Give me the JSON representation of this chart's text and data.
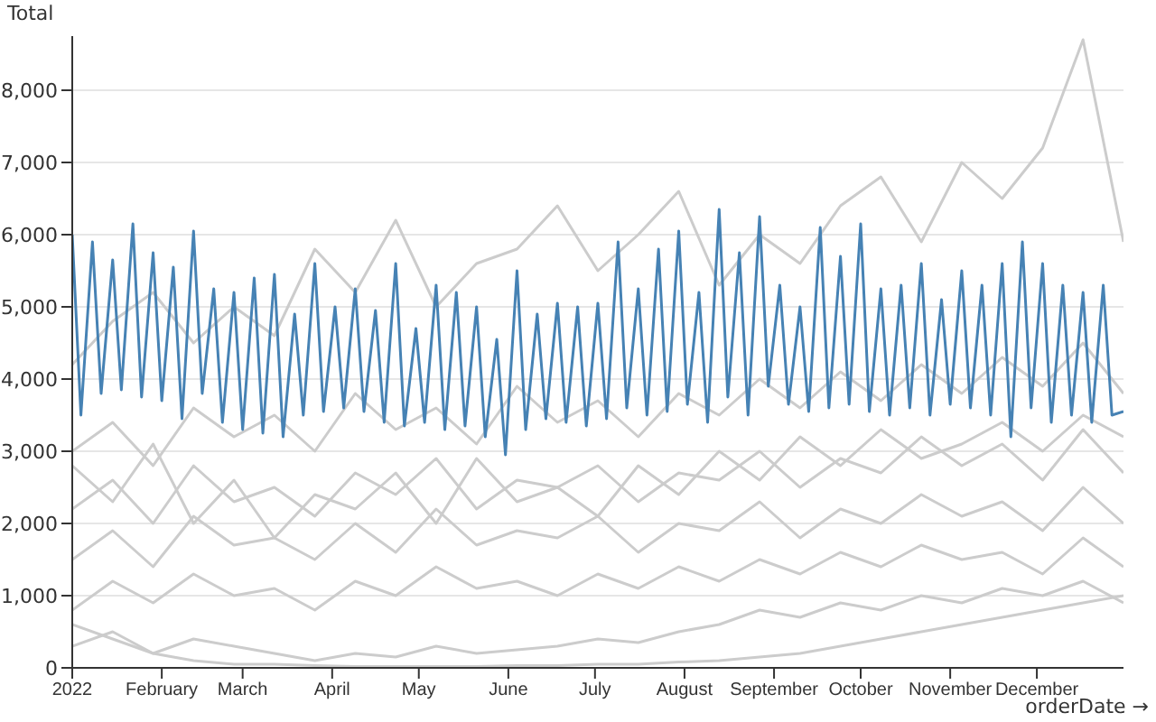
{
  "chart_data": {
    "type": "line",
    "ylabel": "Total",
    "xlabel": "orderDate →",
    "grid": "y",
    "legend": false,
    "marker": "none",
    "line_style": "solid",
    "xlim": [
      "2022-01-01",
      "2022-12-31"
    ],
    "xticks": [
      {
        "value": "2022-01-01",
        "label": "2022"
      },
      {
        "value": "2022-02-01",
        "label": "February"
      },
      {
        "value": "2022-03-01",
        "label": "March"
      },
      {
        "value": "2022-04-01",
        "label": "April"
      },
      {
        "value": "2022-05-01",
        "label": "May"
      },
      {
        "value": "2022-06-01",
        "label": "June"
      },
      {
        "value": "2022-07-01",
        "label": "July"
      },
      {
        "value": "2022-08-01",
        "label": "August"
      },
      {
        "value": "2022-09-01",
        "label": "September"
      },
      {
        "value": "2022-10-01",
        "label": "October"
      },
      {
        "value": "2022-11-01",
        "label": "November"
      },
      {
        "value": "2022-12-01",
        "label": "December"
      }
    ],
    "ylim": [
      0,
      8750
    ],
    "yticks": [
      0,
      {
        "value": 1000,
        "label": "1,000"
      },
      {
        "value": 2000,
        "label": "2,000"
      },
      {
        "value": 3000,
        "label": "3,000"
      },
      {
        "value": 4000,
        "label": "4,000"
      },
      {
        "value": 5000,
        "label": "5,000"
      },
      {
        "value": 6000,
        "label": "6,000"
      },
      {
        "value": 7000,
        "label": "7,000"
      },
      {
        "value": 8000,
        "label": "8,000"
      }
    ],
    "x": [
      "2022-01-01",
      "2022-01-15",
      "2022-01-29",
      "2022-02-12",
      "2022-02-26",
      "2022-03-12",
      "2022-03-26",
      "2022-04-09",
      "2022-04-23",
      "2022-05-07",
      "2022-05-21",
      "2022-06-04",
      "2022-06-18",
      "2022-07-02",
      "2022-07-16",
      "2022-07-30",
      "2022-08-13",
      "2022-08-27",
      "2022-09-10",
      "2022-09-24",
      "2022-10-08",
      "2022-10-22",
      "2022-11-05",
      "2022-11-19",
      "2022-12-03",
      "2022-12-17",
      "2022-12-31"
    ],
    "series": [
      {
        "color": "#cccccc",
        "values": [
          4200,
          4800,
          5200,
          4500,
          5000,
          4600,
          5800,
          5200,
          6200,
          5000,
          5600,
          5800,
          6400,
          5500,
          6000,
          6600,
          5300,
          6000,
          5600,
          6400,
          6800,
          5900,
          7000,
          6500,
          7200,
          8700,
          5900
        ]
      },
      {
        "color": "#cccccc",
        "values": [
          3000,
          3400,
          2800,
          3600,
          3200,
          3500,
          3000,
          3800,
          3300,
          3600,
          3100,
          3900,
          3400,
          3700,
          3200,
          3800,
          3500,
          4000,
          3600,
          4100,
          3700,
          4200,
          3800,
          4300,
          3900,
          4500,
          3800
        ]
      },
      {
        "color": "#cccccc",
        "values": [
          2200,
          2600,
          2000,
          2800,
          2300,
          2500,
          2100,
          2700,
          2400,
          2900,
          2200,
          2600,
          2500,
          2800,
          2300,
          2700,
          2600,
          3000,
          2500,
          2900,
          2700,
          3200,
          2800,
          3100,
          2600,
          3300,
          2700
        ]
      },
      {
        "color": "#cccccc",
        "values": [
          1500,
          1900,
          1400,
          2100,
          1700,
          1800,
          1500,
          2000,
          1600,
          2200,
          1700,
          1900,
          1800,
          2100,
          1600,
          2000,
          1900,
          2300,
          1800,
          2200,
          2000,
          2400,
          2100,
          2300,
          1900,
          2500,
          2000
        ]
      },
      {
        "color": "#cccccc",
        "values": [
          800,
          1200,
          900,
          1300,
          1000,
          1100,
          800,
          1200,
          1000,
          1400,
          1100,
          1200,
          1000,
          1300,
          1100,
          1400,
          1200,
          1500,
          1300,
          1600,
          1400,
          1700,
          1500,
          1600,
          1300,
          1800,
          1400
        ]
      },
      {
        "color": "#cccccc",
        "values": [
          300,
          500,
          200,
          400,
          300,
          200,
          100,
          200,
          150,
          300,
          200,
          250,
          300,
          400,
          350,
          500,
          600,
          800,
          700,
          900,
          800,
          1000,
          900,
          1100,
          1000,
          1200,
          900
        ]
      },
      {
        "color": "#cccccc",
        "values": [
          600,
          400,
          200,
          100,
          50,
          50,
          30,
          20,
          20,
          20,
          20,
          30,
          30,
          50,
          50,
          80,
          100,
          150,
          200,
          300,
          400,
          500,
          600,
          700,
          800,
          900,
          1000
        ]
      },
      {
        "color": "#cccccc",
        "values": [
          2800,
          2300,
          3100,
          2000,
          2600,
          1800,
          2400,
          2200,
          2700,
          2000,
          2900,
          2300,
          2500,
          2100,
          2800,
          2400,
          3000,
          2600,
          3200,
          2800,
          3300,
          2900,
          3100,
          3400,
          3000,
          3500,
          3200
        ]
      },
      {
        "color": "#4682b4",
        "x": [
          "2022-01-01",
          "2022-01-04",
          "2022-01-08",
          "2022-01-11",
          "2022-01-15",
          "2022-01-18",
          "2022-01-22",
          "2022-01-25",
          "2022-01-29",
          "2022-02-01",
          "2022-02-05",
          "2022-02-08",
          "2022-02-12",
          "2022-02-15",
          "2022-02-19",
          "2022-02-22",
          "2022-02-26",
          "2022-03-01",
          "2022-03-05",
          "2022-03-08",
          "2022-03-12",
          "2022-03-15",
          "2022-03-19",
          "2022-03-22",
          "2022-03-26",
          "2022-03-29",
          "2022-04-02",
          "2022-04-05",
          "2022-04-09",
          "2022-04-12",
          "2022-04-16",
          "2022-04-19",
          "2022-04-23",
          "2022-04-26",
          "2022-04-30",
          "2022-05-03",
          "2022-05-07",
          "2022-05-10",
          "2022-05-14",
          "2022-05-17",
          "2022-05-21",
          "2022-05-24",
          "2022-05-28",
          "2022-05-31",
          "2022-06-04",
          "2022-06-07",
          "2022-06-11",
          "2022-06-14",
          "2022-06-18",
          "2022-06-21",
          "2022-06-25",
          "2022-06-28",
          "2022-07-02",
          "2022-07-05",
          "2022-07-09",
          "2022-07-12",
          "2022-07-16",
          "2022-07-19",
          "2022-07-23",
          "2022-07-26",
          "2022-07-30",
          "2022-08-02",
          "2022-08-06",
          "2022-08-09",
          "2022-08-13",
          "2022-08-16",
          "2022-08-20",
          "2022-08-23",
          "2022-08-27",
          "2022-08-30",
          "2022-09-03",
          "2022-09-06",
          "2022-09-10",
          "2022-09-13",
          "2022-09-17",
          "2022-09-20",
          "2022-09-24",
          "2022-09-27",
          "2022-10-01",
          "2022-10-04",
          "2022-10-08",
          "2022-10-11",
          "2022-10-15",
          "2022-10-18",
          "2022-10-22",
          "2022-10-25",
          "2022-10-29",
          "2022-11-01",
          "2022-11-05",
          "2022-11-08",
          "2022-11-12",
          "2022-11-15",
          "2022-11-19",
          "2022-11-22",
          "2022-11-26",
          "2022-11-29",
          "2022-12-03",
          "2022-12-06",
          "2022-12-10",
          "2022-12-13",
          "2022-12-17",
          "2022-12-20",
          "2022-12-24",
          "2022-12-27",
          "2022-12-31"
        ],
        "values": [
          6000,
          3500,
          5900,
          3800,
          5650,
          3850,
          6150,
          3750,
          5750,
          3700,
          5550,
          3450,
          6050,
          3800,
          5250,
          3400,
          5200,
          3300,
          5400,
          3250,
          5450,
          3200,
          4900,
          3500,
          5600,
          3550,
          5000,
          3600,
          5250,
          3550,
          4950,
          3400,
          5600,
          3350,
          4700,
          3400,
          5300,
          3300,
          5200,
          3350,
          5000,
          3200,
          4550,
          2950,
          5500,
          3300,
          4900,
          3450,
          5050,
          3400,
          5000,
          3350,
          5050,
          3450,
          5900,
          3600,
          5250,
          3500,
          5800,
          3550,
          6050,
          3650,
          5200,
          3400,
          6350,
          3750,
          5750,
          3500,
          6250,
          3900,
          5300,
          3650,
          5000,
          3550,
          6100,
          3600,
          5700,
          3650,
          6150,
          3550,
          5250,
          3500,
          5300,
          3600,
          5600,
          3500,
          5100,
          3650,
          5500,
          3600,
          5300,
          3500,
          5600,
          3200,
          5900,
          3600,
          5600,
          3400,
          5300,
          3500,
          5200,
          3400,
          5300,
          3500,
          3550
        ]
      }
    ]
  }
}
